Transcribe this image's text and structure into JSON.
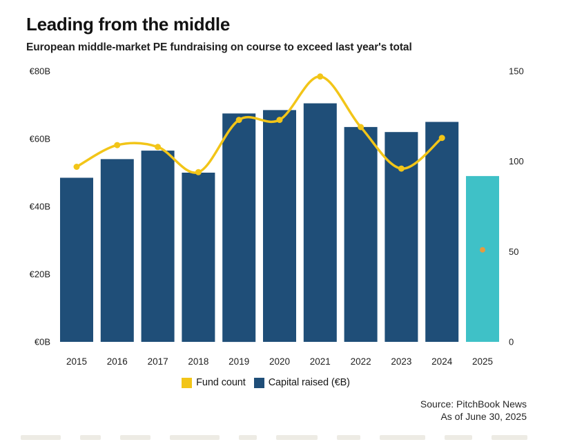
{
  "header": {
    "title": "Leading from the middle",
    "subtitle": "European middle-market PE fundraising on course to exceed last year's total"
  },
  "chart_data": {
    "type": "bar",
    "subtype": "bar+line combo, dual axis",
    "categories": [
      "2015",
      "2016",
      "2017",
      "2018",
      "2019",
      "2020",
      "2021",
      "2022",
      "2023",
      "2024",
      "2025"
    ],
    "series": [
      {
        "name": "Capital raised (€B)",
        "type": "bar",
        "axis": "left",
        "values": [
          48.5,
          54,
          56.5,
          50,
          67.5,
          68.5,
          70.5,
          63.5,
          62,
          65,
          49
        ],
        "color": "#1F4E78",
        "last_bar_color": "#3FC1C7",
        "note": "2025 bar drawn in teal (year-to-date)"
      },
      {
        "name": "Fund count",
        "type": "line",
        "axis": "right",
        "values": [
          97,
          109,
          108,
          94,
          123,
          123,
          147,
          119,
          96,
          113,
          51
        ],
        "color": "#F2C518",
        "last_point_color": "#E59B3F",
        "last_point_detached": true,
        "note": "2025 shown as isolated orange dot, not connected to line"
      }
    ],
    "left_axis": {
      "ticks": [
        "€80B",
        "€60B",
        "€40B",
        "€20B",
        "€0B"
      ],
      "min": 0,
      "max": 80
    },
    "right_axis": {
      "ticks": [
        "150",
        "100",
        "50",
        "0"
      ],
      "min": 0,
      "max": 150
    },
    "grid": false,
    "legend_position": "bottom"
  },
  "legend": {
    "items": [
      {
        "label": "Fund count",
        "color": "#F2C518"
      },
      {
        "label": "Capital raised (€B)",
        "color": "#1F4E78"
      }
    ]
  },
  "source": {
    "line1": "Source: PitchBook News",
    "line2": "As of June 30, 2025"
  },
  "colors": {
    "bar_navy": "#1F4E78",
    "bar_teal": "#3FC1C7",
    "line_yellow": "#F2C518",
    "dot_orange": "#E59B3F",
    "text": "#1d1d1d"
  }
}
